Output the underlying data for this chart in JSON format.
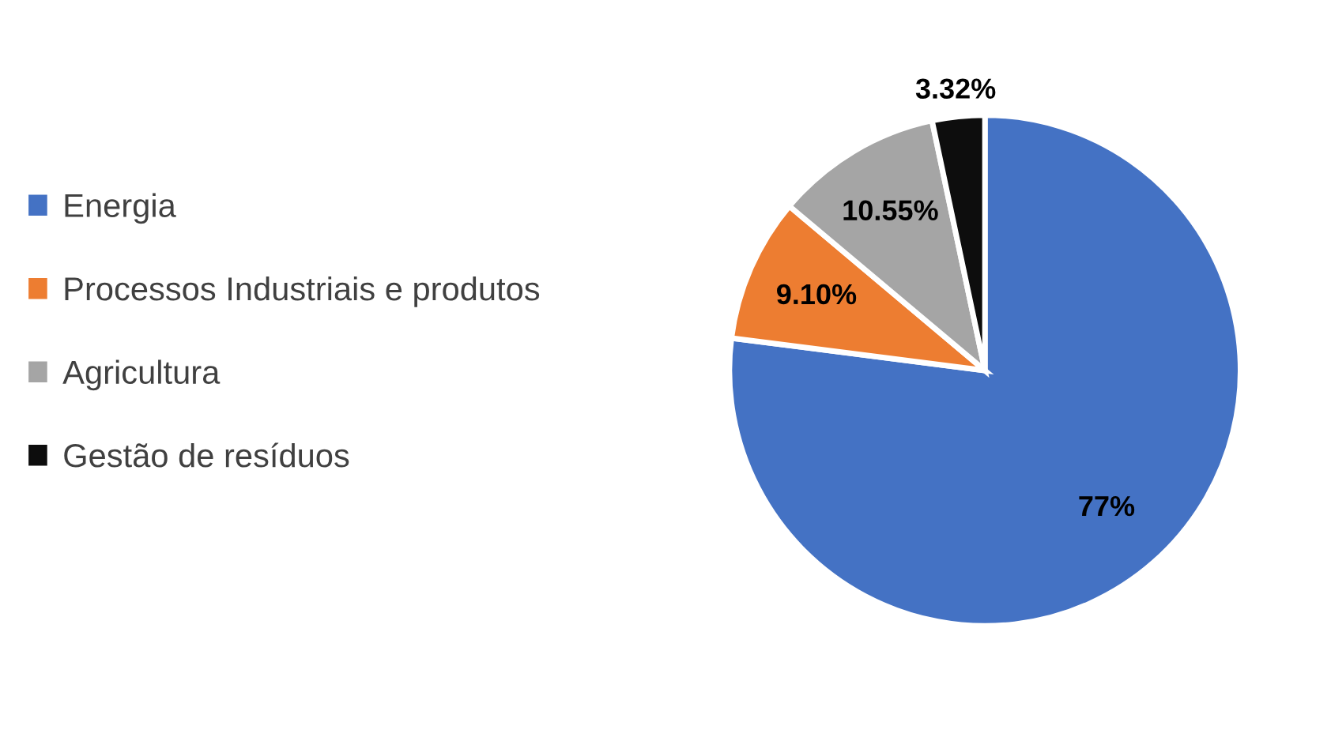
{
  "chart_data": {
    "type": "pie",
    "categories": [
      "Energia",
      "Processos Industriais e produtos",
      "Agricultura",
      "Gestão de resíduos"
    ],
    "values": [
      77,
      9.1,
      10.55,
      3.32
    ],
    "value_labels": [
      "77%",
      "9.10%",
      "10.55%",
      "3.32%"
    ],
    "colors": [
      "#4472c4",
      "#ed7d31",
      "#a5a5a5",
      "#0d0d0d"
    ],
    "legend": "left"
  }
}
